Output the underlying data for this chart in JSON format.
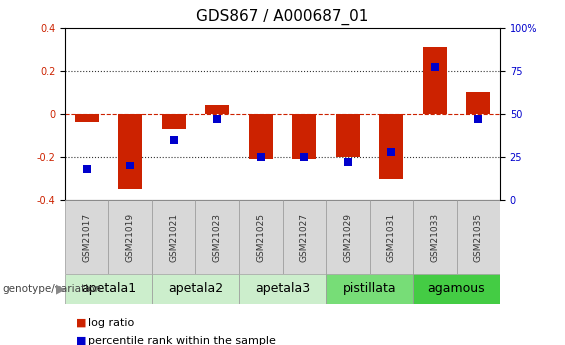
{
  "title": "GDS867 / A000687_01",
  "samples": [
    "GSM21017",
    "GSM21019",
    "GSM21021",
    "GSM21023",
    "GSM21025",
    "GSM21027",
    "GSM21029",
    "GSM21031",
    "GSM21033",
    "GSM21035"
  ],
  "log_ratio": [
    -0.04,
    -0.35,
    -0.07,
    0.04,
    -0.21,
    -0.21,
    -0.2,
    -0.3,
    0.31,
    0.1
  ],
  "percentile_rank": [
    18,
    20,
    35,
    47,
    25,
    25,
    22,
    28,
    77,
    47
  ],
  "ylim": [
    -0.4,
    0.4
  ],
  "yticks_left": [
    -0.4,
    -0.2,
    0.0,
    0.2,
    0.4
  ],
  "yticks_right": [
    0,
    25,
    50,
    75,
    100
  ],
  "bar_color_red": "#cc2200",
  "bar_color_blue": "#0000cc",
  "hline_color": "#cc2200",
  "dotted_color": "#333333",
  "groups": [
    {
      "label": "apetala1",
      "start": 0,
      "end": 2,
      "color": "#cceecc"
    },
    {
      "label": "apetala2",
      "start": 2,
      "end": 4,
      "color": "#cceecc"
    },
    {
      "label": "apetala3",
      "start": 4,
      "end": 6,
      "color": "#cceecc"
    },
    {
      "label": "pistillata",
      "start": 6,
      "end": 8,
      "color": "#77dd77"
    },
    {
      "label": "agamous",
      "start": 8,
      "end": 10,
      "color": "#44cc44"
    }
  ],
  "genotype_label": "genotype/variation",
  "legend_items": [
    {
      "label": "log ratio",
      "color": "#cc2200"
    },
    {
      "label": "percentile rank within the sample",
      "color": "#0000cc"
    }
  ],
  "bar_width": 0.55,
  "title_fontsize": 11,
  "tick_fontsize": 7,
  "group_fontsize": 9,
  "legend_fontsize": 8
}
